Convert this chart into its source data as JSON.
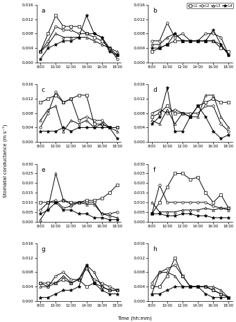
{
  "time_vals": [
    8,
    9,
    10,
    11,
    12,
    13,
    14,
    15,
    16,
    17,
    18
  ],
  "panels": {
    "a": {
      "ylim": [
        0,
        0.016
      ],
      "yticks": [
        0.0,
        0.004,
        0.008,
        0.012,
        0.016
      ],
      "L1": [
        0.003,
        0.008,
        0.013,
        0.01,
        0.01,
        0.01,
        0.008,
        0.007,
        0.006,
        0.004,
        0.002
      ],
      "L2": [
        0.003,
        0.006,
        0.01,
        0.009,
        0.009,
        0.008,
        0.008,
        0.008,
        0.007,
        0.004,
        0.001
      ],
      "L3": [
        0.003,
        0.005,
        0.008,
        0.007,
        0.007,
        0.007,
        0.007,
        0.006,
        0.005,
        0.004,
        0.003
      ],
      "L4": [
        0.001,
        0.004,
        0.005,
        0.006,
        0.006,
        0.007,
        0.013,
        0.008,
        0.007,
        0.003,
        0.002
      ]
    },
    "b": {
      "ylim": [
        0,
        0.016
      ],
      "yticks": [
        0.0,
        0.004,
        0.008,
        0.012,
        0.016
      ],
      "L1": [
        0.003,
        0.004,
        0.005,
        0.006,
        0.006,
        0.006,
        0.006,
        0.006,
        0.006,
        0.004,
        0.003
      ],
      "L2": [
        0.006,
        0.006,
        0.011,
        0.007,
        0.008,
        0.006,
        0.006,
        0.008,
        0.008,
        0.007,
        0.002
      ],
      "L3": [
        0.005,
        0.005,
        0.007,
        0.008,
        0.006,
        0.006,
        0.006,
        0.006,
        0.006,
        0.005,
        0.002
      ],
      "L4": [
        0.004,
        0.004,
        0.005,
        0.008,
        0.006,
        0.006,
        0.006,
        0.006,
        0.009,
        0.005,
        0.002
      ]
    },
    "c": {
      "ylim": [
        0,
        0.016
      ],
      "yticks": [
        0.0,
        0.004,
        0.008,
        0.012,
        0.016
      ],
      "L1": [
        0.011,
        0.012,
        0.013,
        0.011,
        0.012,
        0.013,
        0.013,
        0.005,
        0.005,
        0.004,
        0.004
      ],
      "L2": [
        0.004,
        0.008,
        0.014,
        0.011,
        0.012,
        0.006,
        0.007,
        0.006,
        0.006,
        0.004,
        0.004
      ],
      "L3": [
        0.006,
        0.009,
        0.01,
        0.003,
        0.006,
        0.005,
        0.006,
        0.004,
        0.005,
        0.004,
        0.003
      ],
      "L4": [
        0.003,
        0.003,
        0.003,
        0.004,
        0.003,
        0.004,
        0.004,
        0.004,
        0.004,
        0.004,
        0.001
      ]
    },
    "d": {
      "ylim": [
        0,
        0.016
      ],
      "yticks": [
        0.0,
        0.004,
        0.008,
        0.012,
        0.016
      ],
      "L1": [
        0.007,
        0.008,
        0.01,
        0.008,
        0.008,
        0.007,
        0.01,
        0.011,
        0.012,
        0.011,
        0.011
      ],
      "L2": [
        0.008,
        0.009,
        0.008,
        0.009,
        0.008,
        0.008,
        0.008,
        0.01,
        0.01,
        0.005,
        0.003
      ],
      "L3": [
        0.006,
        0.005,
        0.009,
        0.005,
        0.008,
        0.007,
        0.007,
        0.013,
        0.013,
        0.007,
        0.004
      ],
      "L4": [
        0.005,
        0.007,
        0.015,
        0.003,
        0.003,
        0.007,
        0.01,
        0.007,
        0.003,
        0.001,
        0.002
      ]
    },
    "e": {
      "ylim": [
        0,
        0.03
      ],
      "yticks": [
        0.0,
        0.005,
        0.01,
        0.015,
        0.02,
        0.025,
        0.03
      ],
      "L1": [
        0.01,
        0.01,
        0.01,
        0.011,
        0.01,
        0.01,
        0.011,
        0.011,
        0.012,
        0.015,
        0.019
      ],
      "L2": [
        0.006,
        0.01,
        0.011,
        0.007,
        0.008,
        0.01,
        0.01,
        0.01,
        0.004,
        0.004,
        0.005
      ],
      "L3": [
        0.001,
        0.007,
        0.025,
        0.011,
        0.009,
        0.01,
        0.009,
        0.009,
        0.004,
        0.003,
        0.002
      ],
      "L4": [
        0.004,
        0.006,
        0.01,
        0.006,
        0.006,
        0.004,
        0.004,
        0.002,
        0.002,
        0.001,
        0.001
      ]
    },
    "f": {
      "ylim": [
        0,
        0.03
      ],
      "yticks": [
        0.0,
        0.005,
        0.01,
        0.015,
        0.02,
        0.025,
        0.03
      ],
      "L1": [
        0.004,
        0.01,
        0.018,
        0.025,
        0.025,
        0.022,
        0.023,
        0.015,
        0.01,
        0.014,
        0.007
      ],
      "L2": [
        0.004,
        0.019,
        0.01,
        0.01,
        0.01,
        0.01,
        0.01,
        0.01,
        0.008,
        0.007,
        0.007
      ],
      "L3": [
        0.01,
        0.005,
        0.005,
        0.005,
        0.006,
        0.006,
        0.006,
        0.007,
        0.006,
        0.007,
        0.006
      ],
      "L4": [
        0.004,
        0.004,
        0.003,
        0.003,
        0.004,
        0.004,
        0.003,
        0.003,
        0.002,
        0.002,
        0.002
      ]
    },
    "g": {
      "ylim": [
        0,
        0.016
      ],
      "yticks": [
        0.0,
        0.004,
        0.008,
        0.012,
        0.016
      ],
      "L1": [
        0.005,
        0.005,
        0.005,
        0.006,
        0.005,
        0.006,
        0.004,
        0.005,
        0.004,
        0.003,
        0.003
      ],
      "L2": [
        0.005,
        0.004,
        0.007,
        0.008,
        0.006,
        0.006,
        0.009,
        0.006,
        0.005,
        0.004,
        0.003
      ],
      "L3": [
        0.004,
        0.004,
        0.005,
        0.007,
        0.005,
        0.006,
        0.01,
        0.008,
        0.004,
        0.003,
        0.003
      ],
      "L4": [
        0.001,
        0.001,
        0.002,
        0.003,
        0.003,
        0.004,
        0.01,
        0.005,
        0.003,
        0.002,
        0.002
      ]
    },
    "h": {
      "ylim": [
        0,
        0.016
      ],
      "yticks": [
        0.0,
        0.004,
        0.008,
        0.012,
        0.016
      ],
      "L1": [
        0.004,
        0.004,
        0.007,
        0.012,
        0.007,
        0.004,
        0.004,
        0.004,
        0.003,
        0.002,
        0.001
      ],
      "L2": [
        0.005,
        0.008,
        0.009,
        0.01,
        0.007,
        0.004,
        0.004,
        0.004,
        0.003,
        0.002,
        0.001
      ],
      "L3": [
        0.002,
        0.008,
        0.008,
        0.007,
        0.004,
        0.004,
        0.004,
        0.004,
        0.004,
        0.003,
        0.001
      ],
      "L4": [
        0.002,
        0.002,
        0.003,
        0.004,
        0.004,
        0.004,
        0.004,
        0.002,
        0.001,
        0.001,
        0.001
      ]
    }
  },
  "line_styles": {
    "L1": {
      "marker": "s",
      "linestyle": "-",
      "color": "#000000",
      "markersize": 2.5,
      "markerfacecolor": "white"
    },
    "L2": {
      "marker": "o",
      "linestyle": "-",
      "color": "#000000",
      "markersize": 2.5,
      "markerfacecolor": "white"
    },
    "L3": {
      "marker": "^",
      "linestyle": "-",
      "color": "#000000",
      "markersize": 2.5,
      "markerfacecolor": "white"
    },
    "L4": {
      "marker": "*",
      "linestyle": "-",
      "color": "#000000",
      "markersize": 3.5,
      "markerfacecolor": "#000000"
    }
  },
  "ylabel": "Stomatal conductance (m s⁻¹)",
  "xlabel": "Time (hh:mm)",
  "panel_labels": [
    "a",
    "b",
    "c",
    "d",
    "e",
    "f",
    "g",
    "h"
  ],
  "legend_labels": [
    "L1",
    "L2",
    "L3",
    "L4"
  ]
}
